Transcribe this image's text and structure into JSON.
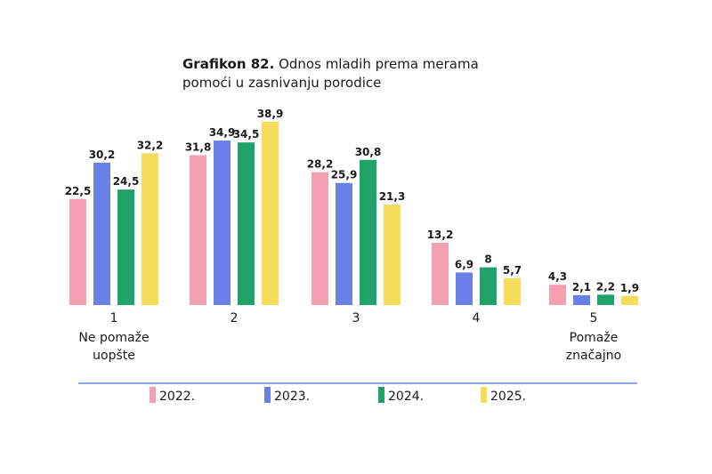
{
  "chart_data": {
    "type": "bar",
    "title_bold": "Grafikon 82.",
    "title_rest_line1": "Odnos mladih prema merama",
    "title_line2": "pomoći u zasnivanju porodice",
    "categories": [
      {
        "label": "1",
        "sublabel": [
          "Ne pomaže",
          "uopšte"
        ]
      },
      {
        "label": "2",
        "sublabel": []
      },
      {
        "label": "3",
        "sublabel": []
      },
      {
        "label": "4",
        "sublabel": []
      },
      {
        "label": "5",
        "sublabel": [
          "Pomaže",
          "značajno"
        ]
      }
    ],
    "series": [
      {
        "name": "2022.",
        "color": "#f4a0b2",
        "values": [
          22.5,
          31.8,
          28.2,
          13.2,
          4.3
        ],
        "labels": [
          "22,5",
          "31,8",
          "28,2",
          "13,2",
          "4,3"
        ]
      },
      {
        "name": "2023.",
        "color": "#6a80e6",
        "values": [
          30.2,
          34.9,
          25.9,
          6.9,
          2.1
        ],
        "labels": [
          "30,2",
          "34,9",
          "25,9",
          "6,9",
          "2,1"
        ]
      },
      {
        "name": "2024.",
        "color": "#1fa36a",
        "values": [
          24.5,
          34.5,
          30.8,
          8,
          2.2
        ],
        "labels": [
          "24,5",
          "34,5",
          "30,8",
          "8",
          "2,2"
        ]
      },
      {
        "name": "2025.",
        "color": "#f5dd5a",
        "values": [
          32.2,
          38.9,
          21.3,
          5.7,
          1.9
        ],
        "labels": [
          "32,2",
          "38,9",
          "21,3",
          "5,7",
          "1,9"
        ]
      }
    ],
    "legend_placement": "bottom",
    "separator_color": "#8ea0f0",
    "grid": false
  }
}
